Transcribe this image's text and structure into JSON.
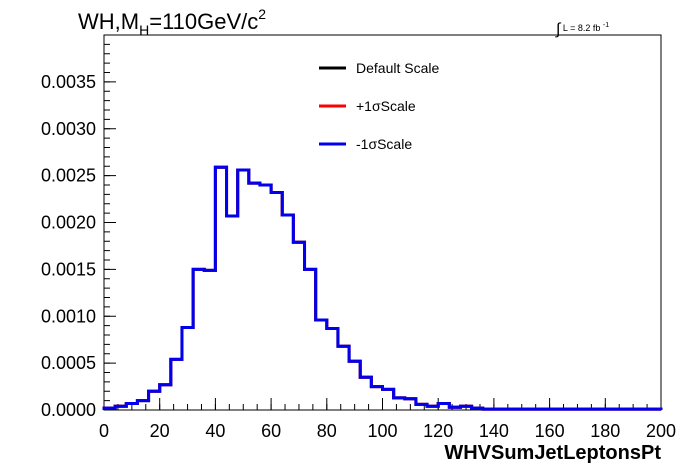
{
  "chart_data": {
    "type": "line",
    "title": "WH,M_H=110GeV/c^2",
    "title_parts": {
      "pre": "WH,M",
      "sub": "H",
      "post": "=110GeV/c",
      "sup": "2"
    },
    "luminosity": {
      "sym": "∫",
      "text": "L = 8.2 fb",
      "sup": "-1"
    },
    "xlabel": "WHVSumJetLeptonsPt",
    "ylabel": "",
    "xlim": [
      0,
      200
    ],
    "ylim": [
      0,
      0.004
    ],
    "x_ticks": [
      "0",
      "20",
      "40",
      "60",
      "80",
      "100",
      "120",
      "140",
      "160",
      "180",
      "200"
    ],
    "y_ticks": [
      "0.0000",
      "0.0005",
      "0.0010",
      "0.0015",
      "0.0020",
      "0.0025",
      "0.0030",
      "0.0035"
    ],
    "legend_position": "top-center",
    "bin_edges": [
      0,
      4,
      8,
      12,
      16,
      20,
      24,
      28,
      32,
      36,
      40,
      44,
      48,
      52,
      56,
      60,
      64,
      68,
      72,
      76,
      80,
      84,
      88,
      92,
      96,
      100,
      104,
      108,
      112,
      116,
      120,
      124,
      128,
      132,
      136,
      140,
      144,
      148,
      152,
      156,
      160,
      164,
      168,
      172,
      176,
      180,
      184,
      188,
      192,
      196,
      200
    ],
    "series": [
      {
        "name": "Default Scale",
        "color": "#000000",
        "values": [
          2e-05,
          4e-05,
          7e-05,
          0.0001,
          0.0002,
          0.00027,
          0.00054,
          0.00088,
          0.0015,
          0.00149,
          0.00259,
          0.00207,
          0.00256,
          0.00242,
          0.0024,
          0.00232,
          0.00208,
          0.00179,
          0.0015,
          0.00096,
          0.00087,
          0.00068,
          0.00052,
          0.00035,
          0.00025,
          0.00022,
          0.00013,
          0.00012,
          6e-05,
          4e-05,
          7e-05,
          3e-05,
          4e-05,
          2e-05,
          1e-05,
          1e-05,
          1e-05,
          1e-05,
          1e-05,
          1e-05,
          1e-05,
          1e-05,
          1e-05,
          1e-05,
          1e-05,
          1e-05,
          1e-05,
          1e-05,
          1e-05,
          1e-05
        ]
      },
      {
        "name": "+1σScale",
        "color": "#ff0000",
        "values": [
          2e-05,
          4e-05,
          7e-05,
          0.0001,
          0.0002,
          0.00027,
          0.00054,
          0.00088,
          0.0015,
          0.00149,
          0.00259,
          0.00207,
          0.00256,
          0.00242,
          0.0024,
          0.00232,
          0.00208,
          0.00179,
          0.0015,
          0.00096,
          0.00087,
          0.00068,
          0.00052,
          0.00035,
          0.00025,
          0.00022,
          0.00013,
          0.00012,
          6e-05,
          4e-05,
          7e-05,
          3e-05,
          4e-05,
          2e-05,
          1e-05,
          1e-05,
          1e-05,
          1e-05,
          1e-05,
          1e-05,
          1e-05,
          1e-05,
          1e-05,
          1e-05,
          1e-05,
          1e-05,
          1e-05,
          1e-05,
          1e-05,
          1e-05
        ]
      },
      {
        "name": "-1σScale",
        "color": "#0000ee",
        "values": [
          2e-05,
          4e-05,
          7e-05,
          0.0001,
          0.0002,
          0.00027,
          0.00054,
          0.00088,
          0.0015,
          0.00149,
          0.00259,
          0.00207,
          0.00256,
          0.00242,
          0.0024,
          0.00232,
          0.00208,
          0.00179,
          0.0015,
          0.00096,
          0.00087,
          0.00068,
          0.00052,
          0.00035,
          0.00025,
          0.00022,
          0.00013,
          0.00012,
          6e-05,
          4e-05,
          7e-05,
          3e-05,
          4e-05,
          2e-05,
          1e-05,
          1e-05,
          1e-05,
          1e-05,
          1e-05,
          1e-05,
          1e-05,
          1e-05,
          1e-05,
          1e-05,
          1e-05,
          1e-05,
          1e-05,
          1e-05,
          1e-05,
          1e-05
        ]
      }
    ]
  }
}
